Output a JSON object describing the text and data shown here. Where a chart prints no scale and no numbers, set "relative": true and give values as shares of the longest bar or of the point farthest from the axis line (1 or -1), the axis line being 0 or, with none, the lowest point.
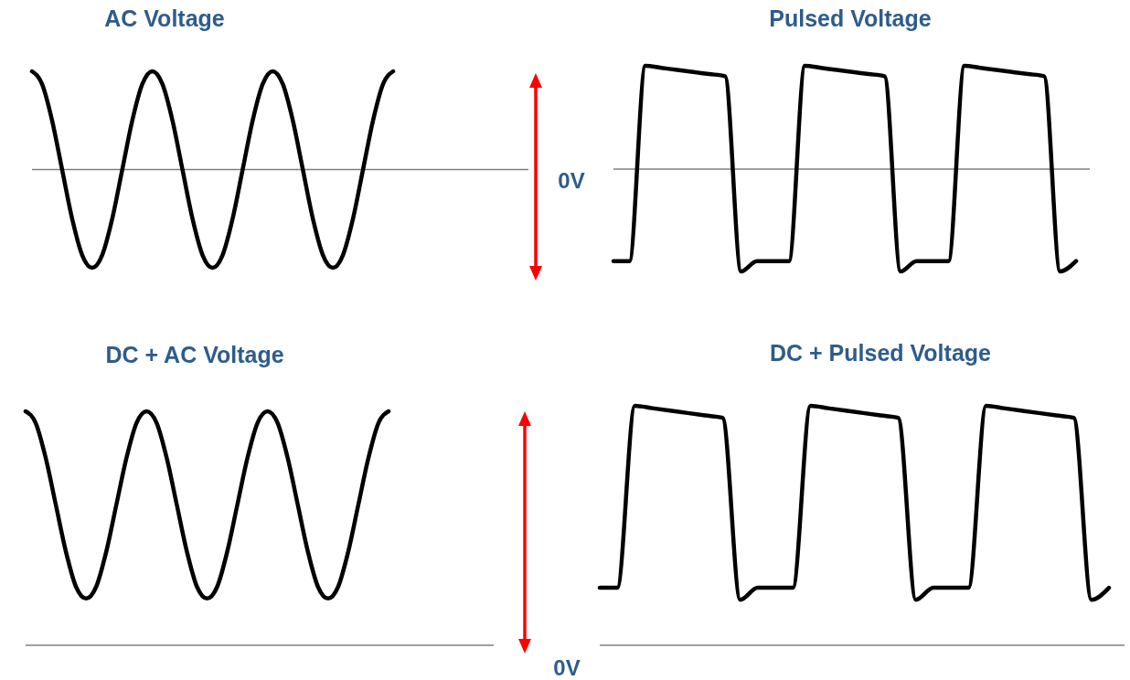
{
  "chart_data": [
    {
      "type": "line",
      "title": "AC Voltage",
      "relative": true,
      "categories": [
        null,
        null,
        null,
        null,
        null,
        null,
        null,
        null,
        null,
        null,
        null,
        null,
        null,
        null,
        null,
        null,
        null,
        null,
        null,
        null,
        null,
        null,
        null,
        null,
        null,
        null,
        null,
        null,
        null,
        null,
        null,
        null,
        null,
        null,
        null,
        null,
        null
      ],
      "series": [
        {
          "color": "#000000",
          "values": [
            1,
            0.87,
            0.5,
            0,
            -0.5,
            -0.87,
            -1,
            -0.87,
            -0.5,
            0,
            0.5,
            0.87,
            1,
            0.87,
            0.5,
            0,
            -0.5,
            -0.87,
            -1,
            -0.87,
            -0.5,
            0,
            0.5,
            0.87,
            1,
            0.87,
            0.5,
            0,
            -0.5,
            -0.87,
            -1,
            -0.87,
            -0.5,
            0,
            0.5,
            0.87,
            1
          ]
        }
      ],
      "ref_lines": [
        {
          "axis": "y",
          "value": 0,
          "label": "0V",
          "color": "#808080"
        }
      ]
    },
    {
      "type": "line",
      "title": "Pulsed Voltage",
      "relative": true,
      "categories": [
        null,
        null,
        null,
        null,
        null,
        null,
        null,
        null,
        null,
        null,
        null,
        null,
        null,
        null,
        null,
        null,
        null,
        null,
        null,
        null,
        null,
        null,
        null,
        null,
        null,
        null,
        null,
        null,
        null,
        null
      ],
      "series": [
        {
          "color": "#000000",
          "values": [
            -0.89,
            -0.89,
            1,
            0.98,
            0.96,
            0.94,
            0.92,
            0.9,
            -0.99,
            -0.89,
            -0.89,
            -0.89,
            1,
            0.98,
            0.96,
            0.94,
            0.92,
            0.9,
            -0.99,
            -0.89,
            -0.89,
            -0.89,
            1,
            0.98,
            0.96,
            0.94,
            0.92,
            0.9,
            -0.99,
            -0.89
          ]
        }
      ],
      "ref_lines": [
        {
          "axis": "y",
          "value": 0,
          "color": "#808080"
        }
      ]
    },
    {
      "type": "line",
      "title": "DC + AC Voltage",
      "relative": true,
      "categories": [
        null,
        null,
        null,
        null,
        null,
        null,
        null,
        null,
        null,
        null,
        null,
        null,
        null,
        null,
        null,
        null,
        null,
        null,
        null,
        null,
        null,
        null,
        null,
        null,
        null,
        null,
        null,
        null,
        null,
        null,
        null,
        null,
        null,
        null,
        null,
        null,
        null
      ],
      "series": [
        {
          "color": "#000000",
          "values": [
            1,
            0.95,
            0.8,
            0.6,
            0.4,
            0.25,
            0.2,
            0.25,
            0.4,
            0.6,
            0.8,
            0.95,
            1,
            0.95,
            0.8,
            0.6,
            0.4,
            0.25,
            0.2,
            0.25,
            0.4,
            0.6,
            0.8,
            0.95,
            1,
            0.95,
            0.8,
            0.6,
            0.4,
            0.25,
            0.2,
            0.25,
            0.4,
            0.6,
            0.8,
            0.95,
            1
          ]
        }
      ],
      "ref_lines": [
        {
          "axis": "y",
          "value": 0,
          "label": "0V",
          "color": "#808080"
        }
      ]
    },
    {
      "type": "line",
      "title": "DC + Pulsed Voltage",
      "relative": true,
      "categories": [
        null,
        null,
        null,
        null,
        null,
        null,
        null,
        null,
        null,
        null,
        null,
        null,
        null,
        null,
        null,
        null,
        null,
        null,
        null,
        null,
        null,
        null,
        null,
        null,
        null,
        null,
        null,
        null,
        null,
        null
      ],
      "series": [
        {
          "color": "#000000",
          "values": [
            0.24,
            0.24,
            1,
            0.99,
            0.98,
            0.97,
            0.96,
            0.95,
            0.19,
            0.24,
            0.24,
            0.24,
            1,
            0.99,
            0.98,
            0.97,
            0.96,
            0.95,
            0.19,
            0.24,
            0.24,
            0.24,
            1,
            0.99,
            0.98,
            0.97,
            0.96,
            0.95,
            0.19,
            0.24
          ]
        }
      ],
      "ref_lines": [
        {
          "axis": "y",
          "value": 0,
          "color": "#808080"
        }
      ]
    }
  ]
}
